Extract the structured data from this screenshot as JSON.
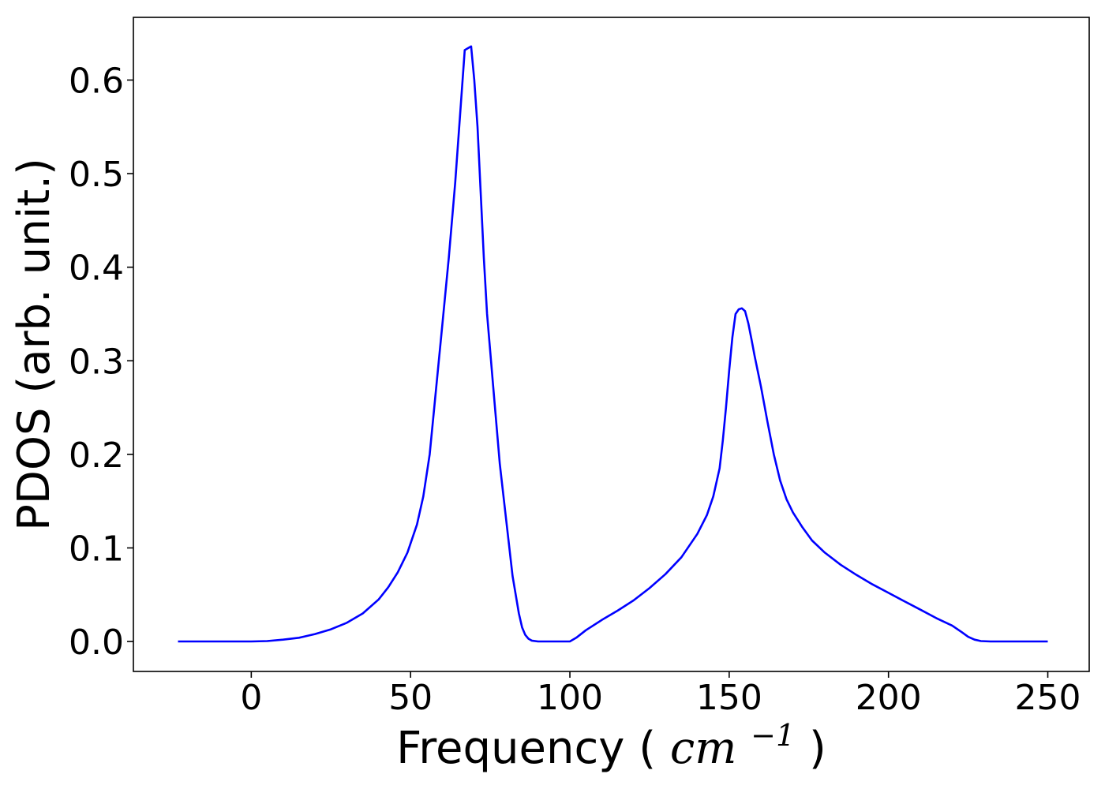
{
  "chart_data": {
    "type": "line",
    "xlabel": "Frequency",
    "xlabel_unit_base": "cm",
    "xlabel_unit_exp": "−1",
    "ylabel": "PDOS (arb. unit.)",
    "xlim": [
      -37,
      263
    ],
    "ylim": [
      -0.032,
      0.667
    ],
    "xticks": [
      0,
      50,
      100,
      150,
      200,
      250
    ],
    "yticks": [
      0.0,
      0.1,
      0.2,
      0.3,
      0.4,
      0.5,
      0.6
    ],
    "ytick_labels": [
      "0.0",
      "0.1",
      "0.2",
      "0.3",
      "0.4",
      "0.5",
      "0.6"
    ],
    "grid": false,
    "series": [
      {
        "color": "#0000ff",
        "x": [
          -23,
          -10,
          0,
          5,
          10,
          15,
          20,
          25,
          30,
          35,
          40,
          43,
          46,
          49,
          52,
          54,
          56,
          58,
          60,
          62,
          64,
          66,
          67,
          68,
          69,
          70,
          71,
          72,
          73,
          74,
          76,
          78,
          80,
          82,
          84,
          85,
          86,
          87,
          88,
          90,
          95,
          100,
          102,
          105,
          110,
          115,
          120,
          125,
          130,
          135,
          140,
          143,
          145,
          147,
          148,
          149,
          150,
          151,
          152,
          153,
          154,
          155,
          156,
          157,
          158,
          160,
          162,
          164,
          166,
          168,
          170,
          173,
          176,
          180,
          185,
          190,
          195,
          200,
          205,
          210,
          215,
          220,
          223,
          225,
          227,
          229,
          232,
          240,
          250
        ],
        "y": [
          0.0,
          0.0,
          0.0,
          0.0005,
          0.002,
          0.004,
          0.008,
          0.013,
          0.02,
          0.03,
          0.045,
          0.058,
          0.074,
          0.095,
          0.125,
          0.155,
          0.2,
          0.27,
          0.34,
          0.41,
          0.49,
          0.585,
          0.632,
          0.634,
          0.636,
          0.6,
          0.55,
          0.48,
          0.41,
          0.35,
          0.27,
          0.19,
          0.13,
          0.07,
          0.03,
          0.015,
          0.007,
          0.003,
          0.001,
          0.0,
          0.0,
          0.0,
          0.004,
          0.012,
          0.023,
          0.033,
          0.044,
          0.057,
          0.072,
          0.09,
          0.115,
          0.135,
          0.155,
          0.185,
          0.215,
          0.25,
          0.29,
          0.325,
          0.35,
          0.355,
          0.356,
          0.353,
          0.34,
          0.323,
          0.305,
          0.272,
          0.235,
          0.2,
          0.172,
          0.152,
          0.138,
          0.122,
          0.108,
          0.095,
          0.082,
          0.071,
          0.061,
          0.052,
          0.043,
          0.034,
          0.025,
          0.017,
          0.01,
          0.005,
          0.002,
          0.0005,
          0.0,
          0.0,
          0.0
        ]
      }
    ]
  }
}
